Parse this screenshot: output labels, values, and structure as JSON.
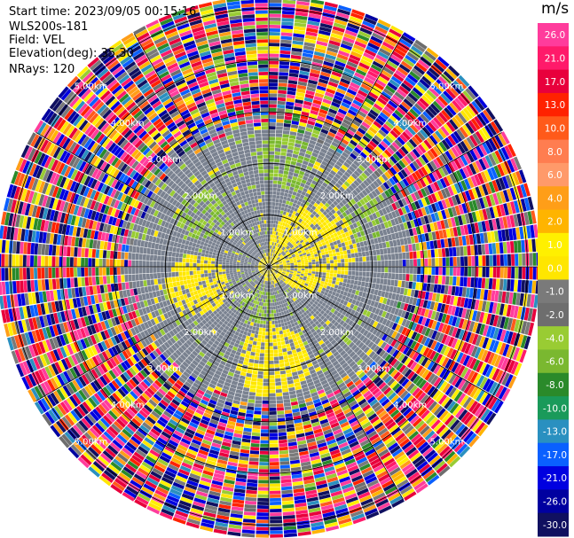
{
  "header": {
    "start_time": "Start time: 2023/09/05 00:15:16",
    "instrument": "WLS200s-181",
    "field": "Field: VEL",
    "elevation": "Elevation(deg): 35.30",
    "nrays": "NRays: 120"
  },
  "colorbar": {
    "unit": "m/s",
    "ticks": [
      "26.0",
      "21.0",
      "17.0",
      "13.0",
      "10.0",
      "8.0",
      "6.0",
      "4.0",
      "2.0",
      "1.0",
      "0.0",
      "-1.0",
      "-2.0",
      "-4.0",
      "-6.0",
      "-8.0",
      "-10.0",
      "-13.0",
      "-17.0",
      "-21.0",
      "-26.0",
      "-30.0"
    ],
    "bands": [
      "#ff3c9c",
      "#ff1a6a",
      "#e8003c",
      "#ff2200",
      "#ff5a1a",
      "#ff7d50",
      "#ff9a6a",
      "#ff9e18",
      "#ffb400",
      "#fff000",
      "#ffe600",
      "#7a7a7a",
      "#6e6e6e",
      "#99cc33",
      "#7ab830",
      "#2a8a2a",
      "#1a9a5a",
      "#2a90c0",
      "#0a60ff",
      "#0000e0",
      "#0000a0",
      "#101060"
    ]
  },
  "range_labels": [
    "1.00km",
    "2.00km",
    "3.00km",
    "4.00km",
    "5.00km"
  ],
  "chart_data": {
    "type": "ppi",
    "title": "",
    "field": "VEL",
    "unit": "m/s",
    "elevation_deg": 35.3,
    "n_rays": 120,
    "range_rings_km": [
      1,
      2,
      3,
      4,
      5
    ],
    "max_range_km": 5.2,
    "azimuth_spokes_deg": [
      0,
      30,
      60,
      90,
      120,
      150,
      180,
      210,
      240,
      270,
      300,
      330
    ],
    "colorscale": {
      "vmin": -30.0,
      "vmax": 26.0,
      "ticks": [
        26.0,
        21.0,
        17.0,
        13.0,
        10.0,
        8.0,
        6.0,
        4.0,
        2.0,
        1.0,
        0.0,
        -1.0,
        -2.0,
        -4.0,
        -6.0,
        -8.0,
        -10.0,
        -13.0,
        -17.0,
        -21.0,
        -26.0,
        -30.0
      ]
    },
    "regions": [
      {
        "description": "near-zero velocities (grey) dominate inside ~2.6 km",
        "value": 0.0
      },
      {
        "description": "positive velocities (yellow ~1-2 m/s) north-east, south and west patches",
        "value": 1.5
      },
      {
        "description": "negative velocities (light green ~-1 to -2 m/s) scattered inner region",
        "value": -1.5
      },
      {
        "description": "noisy random velocities beyond ~2.8 km",
        "value": "noise"
      }
    ]
  }
}
